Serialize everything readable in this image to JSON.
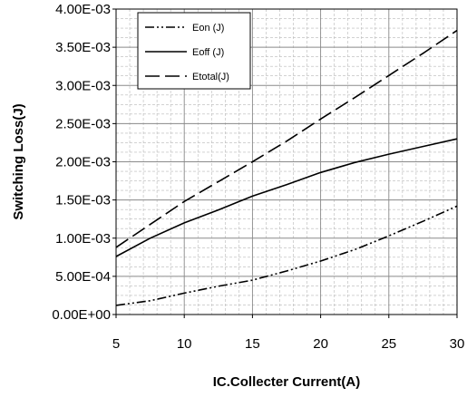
{
  "chart_data": {
    "type": "line",
    "title": "",
    "xlabel": "IC.Collecter Current(A)",
    "ylabel": "Switching Loss(J)",
    "xlim": [
      5,
      30
    ],
    "ylim": [
      0,
      0.004
    ],
    "x_ticks": [
      5,
      10,
      15,
      20,
      25,
      30
    ],
    "x_tick_labels": [
      "5",
      "10",
      "15",
      "20",
      "25",
      "30"
    ],
    "y_ticks": [
      0,
      0.0005,
      0.001,
      0.0015,
      0.002,
      0.0025,
      0.003,
      0.0035,
      0.004
    ],
    "y_tick_labels": [
      "0.00E+00",
      "5.00E-04",
      "1.00E-03",
      "1.50E-03",
      "2.00E-03",
      "2.50E-03",
      "3.00E-03",
      "3.50E-03",
      "4.00E-03"
    ],
    "grid": true,
    "legend_position": "top-left",
    "series": [
      {
        "name": "Eon (J)",
        "dash": "dash-dot-dot",
        "color": "#000000",
        "x": [
          5,
          7.5,
          10,
          12.5,
          15,
          17.5,
          20,
          22.5,
          25,
          27.5,
          30
        ],
        "y": [
          0.00012,
          0.00018,
          0.00028,
          0.00037,
          0.00045,
          0.00057,
          0.0007,
          0.00085,
          0.00103,
          0.00122,
          0.00142
        ]
      },
      {
        "name": "Eoff (J)",
        "dash": "solid",
        "color": "#000000",
        "x": [
          5,
          7.5,
          10,
          12.5,
          15,
          17.5,
          20,
          22.5,
          25,
          27.5,
          30
        ],
        "y": [
          0.00076,
          0.001,
          0.0012,
          0.00137,
          0.00155,
          0.0017,
          0.00186,
          0.00199,
          0.0021,
          0.0022,
          0.0023
        ]
      },
      {
        "name": "Etotal(J)",
        "dash": "long-dash",
        "color": "#000000",
        "x": [
          5,
          7.5,
          10,
          12.5,
          15,
          17.5,
          20,
          22.5,
          25,
          27.5,
          30
        ],
        "y": [
          0.00088,
          0.00118,
          0.00148,
          0.00174,
          0.002,
          0.00227,
          0.00256,
          0.00284,
          0.00313,
          0.00342,
          0.00372
        ]
      }
    ]
  }
}
